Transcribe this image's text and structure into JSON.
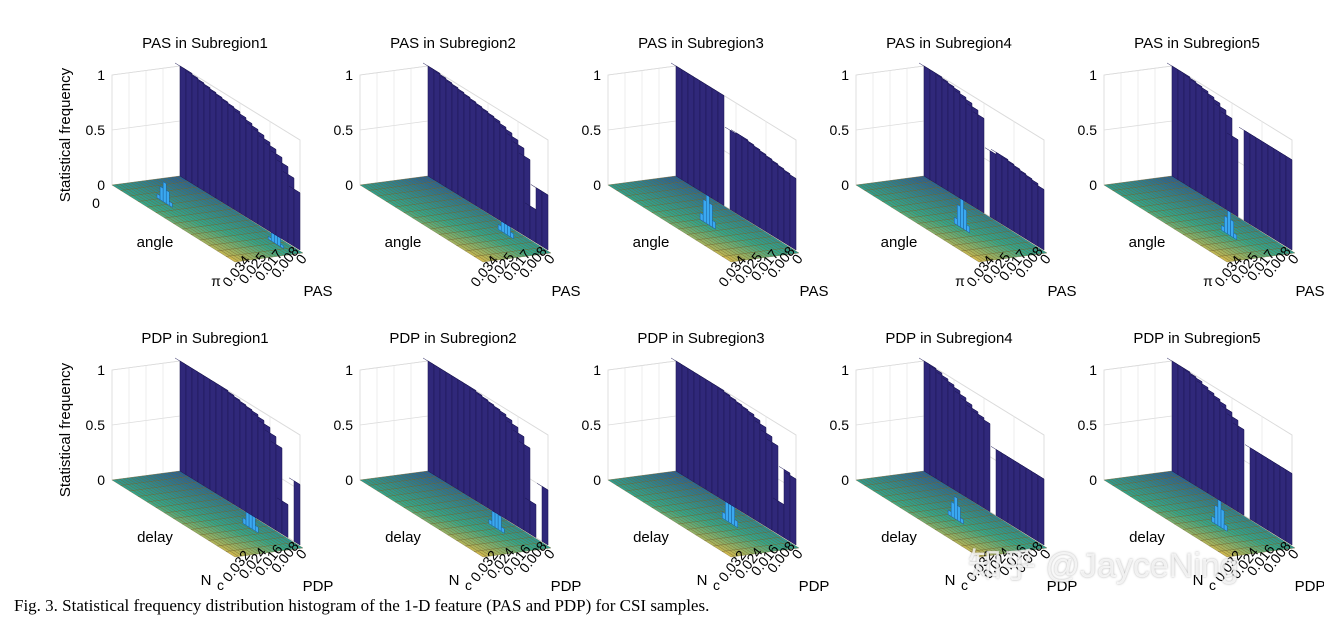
{
  "chart_data": [
    {
      "type": "bar3d",
      "title": "PAS in Subregion1",
      "ylabel": "Statistical frequency",
      "x_axis_label": "angle",
      "x_ticks": [
        "0",
        "π"
      ],
      "y_axis_label": "PAS",
      "y_ticks": [
        "0",
        "0.008",
        "0.017",
        "0.025",
        "0.034"
      ],
      "z_ticks": [
        "0",
        "0.5",
        "1"
      ],
      "zlim": [
        0,
        1
      ],
      "back_wall_profile": [
        1.0,
        1.0,
        0.99,
        0.98,
        0.97,
        0.96,
        0.95,
        0.94,
        0.93,
        0.92,
        0.9,
        0.88,
        0.86,
        0.84,
        0.81,
        0.78,
        0.74,
        0.69,
        0.62,
        0.52
      ],
      "peaks": [
        {
          "angle_pos": 0.25,
          "pas_pos": 0.3,
          "height": 0.18
        },
        {
          "angle_pos": 0.85,
          "pas_pos": 0.85,
          "height": 0.12
        }
      ]
    },
    {
      "type": "bar3d",
      "title": "PAS in Subregion2",
      "ylabel": "",
      "x_axis_label": "angle",
      "x_ticks": [],
      "y_axis_label": "PAS",
      "y_ticks": [
        "0",
        "0.008",
        "0.017",
        "0.025",
        "0.034"
      ],
      "z_ticks": [
        "0",
        "0.5",
        "1"
      ],
      "zlim": [
        0,
        1
      ],
      "back_wall_profile": [
        1.0,
        1.0,
        0.99,
        0.98,
        0.97,
        0.96,
        0.95,
        0.94,
        0.93,
        0.92,
        0.91,
        0.9,
        0.88,
        0.86,
        0.83,
        0.79,
        0.72,
        0.3,
        0.5,
        0.5
      ],
      "peaks": [
        {
          "angle_pos": 0.72,
          "pas_pos": 0.82,
          "height": 0.22
        }
      ]
    },
    {
      "type": "bar3d",
      "title": "PAS in Subregion3",
      "ylabel": "",
      "x_axis_label": "angle",
      "x_ticks": [],
      "y_axis_label": "PAS",
      "y_ticks": [
        "0",
        "0.008",
        "0.017",
        "0.025",
        "0.034"
      ],
      "z_ticks": [
        "0",
        "0.5",
        "1"
      ],
      "zlim": [
        0,
        1
      ],
      "back_wall_profile": [
        1.0,
        1.0,
        1.0,
        1.0,
        1.0,
        1.0,
        1.0,
        1.0,
        0.0,
        0.72,
        0.73,
        0.73,
        0.72,
        0.71,
        0.7,
        0.69,
        0.68,
        0.67,
        0.66,
        0.65
      ],
      "peaks": [
        {
          "angle_pos": 0.55,
          "pas_pos": 0.45,
          "height": 0.3
        }
      ]
    },
    {
      "type": "bar3d",
      "title": "PAS in Subregion4",
      "ylabel": "",
      "x_axis_label": "angle",
      "x_ticks": [
        "π"
      ],
      "y_axis_label": "PAS",
      "y_ticks": [
        "0",
        "0.008",
        "0.017",
        "0.025",
        "0.034"
      ],
      "z_ticks": [
        "0",
        "0.5",
        "1"
      ],
      "zlim": [
        0,
        1
      ],
      "back_wall_profile": [
        1.0,
        1.0,
        1.0,
        0.99,
        0.98,
        0.97,
        0.95,
        0.93,
        0.9,
        0.86,
        0.0,
        0.6,
        0.62,
        0.62,
        0.61,
        0.6,
        0.59,
        0.58,
        0.57,
        0.55
      ],
      "peaks": [
        {
          "angle_pos": 0.6,
          "pas_pos": 0.45,
          "height": 0.28
        }
      ]
    },
    {
      "type": "bar3d",
      "title": "PAS in Subregion5",
      "ylabel": "",
      "x_axis_label": "angle",
      "x_ticks": [
        "π"
      ],
      "y_axis_label": "PAS",
      "y_ticks": [
        "0",
        "0.008",
        "0.017",
        "0.025",
        "0.034"
      ],
      "z_ticks": [
        "0",
        "0.5",
        "1"
      ],
      "zlim": [
        0,
        1
      ],
      "back_wall_profile": [
        1.0,
        1.0,
        1.0,
        0.99,
        0.98,
        0.97,
        0.95,
        0.93,
        0.9,
        0.86,
        0.7,
        0.0,
        0.82,
        0.82,
        0.82,
        0.82,
        0.82,
        0.82,
        0.82,
        0.82
      ],
      "peaks": [
        {
          "angle_pos": 0.7,
          "pas_pos": 0.55,
          "height": 0.22
        }
      ]
    },
    {
      "type": "bar3d",
      "title": "PDP in Subregion1",
      "ylabel": "Statistical frequency",
      "x_axis_label": "delay",
      "x_ticks": [],
      "y_axis_label": "PDP",
      "y_ticks": [
        "0",
        "0.008",
        "0.016",
        "0.024",
        "0.032"
      ],
      "z_ticks": [
        "0",
        "0.5",
        "1"
      ],
      "zlim": [
        0,
        1
      ],
      "back_wall_profile": [
        1.0,
        1.0,
        1.0,
        1.0,
        1.0,
        1.0,
        1.0,
        1.0,
        0.99,
        0.98,
        0.97,
        0.96,
        0.95,
        0.93,
        0.9,
        0.85,
        0.78,
        0.3,
        0.0,
        0.55
      ],
      "peaks": [
        {
          "angle_pos": 0.7,
          "pas_pos": 0.75,
          "height": 0.25
        }
      ]
    },
    {
      "type": "bar3d",
      "title": "PDP in Subregion2",
      "ylabel": "",
      "x_axis_label": "delay",
      "x_ticks": [],
      "y_axis_label": "PDP",
      "y_ticks": [
        "0",
        "0.008",
        "0.016",
        "0.024",
        "0.032"
      ],
      "z_ticks": [
        "0",
        "0.5",
        "1"
      ],
      "zlim": [
        0,
        1
      ],
      "back_wall_profile": [
        1.0,
        1.0,
        1.0,
        1.0,
        1.0,
        1.0,
        1.0,
        1.0,
        0.99,
        0.98,
        0.97,
        0.96,
        0.95,
        0.93,
        0.9,
        0.85,
        0.78,
        0.3,
        0.0,
        0.5
      ],
      "peaks": [
        {
          "angle_pos": 0.7,
          "pas_pos": 0.72,
          "height": 0.2
        }
      ]
    },
    {
      "type": "bar3d",
      "title": "PDP in Subregion3",
      "ylabel": "",
      "x_axis_label": "delay",
      "x_ticks": [],
      "y_axis_label": "PDP",
      "y_ticks": [
        "0",
        "0.008",
        "0.016",
        "0.024",
        "0.032"
      ],
      "z_ticks": [
        "0",
        "0.5",
        "1"
      ],
      "zlim": [
        0,
        1
      ],
      "back_wall_profile": [
        1.0,
        1.0,
        1.0,
        1.0,
        1.0,
        1.0,
        1.0,
        1.0,
        0.99,
        0.98,
        0.97,
        0.96,
        0.95,
        0.93,
        0.9,
        0.85,
        0.8,
        0.3,
        0.62,
        0.6
      ],
      "peaks": [
        {
          "angle_pos": 0.62,
          "pas_pos": 0.65,
          "height": 0.28
        }
      ]
    },
    {
      "type": "bar3d",
      "title": "PDP in Subregion4",
      "ylabel": "",
      "x_axis_label": "delay",
      "x_ticks": [],
      "y_axis_label": "PDP",
      "y_ticks": [
        "0",
        "0.008",
        "0.016",
        "0.024",
        "0.032"
      ],
      "z_ticks": [
        "0",
        "0.5",
        "1"
      ],
      "zlim": [
        0,
        1
      ],
      "back_wall_profile": [
        1.0,
        1.0,
        0.99,
        0.97,
        0.95,
        0.93,
        0.9,
        0.87,
        0.84,
        0.82,
        0.8,
        0.0,
        0.6,
        0.6,
        0.6,
        0.6,
        0.6,
        0.6,
        0.6,
        0.6
      ],
      "peaks": [
        {
          "angle_pos": 0.55,
          "pas_pos": 0.45,
          "height": 0.2
        }
      ]
    },
    {
      "type": "bar3d",
      "title": "PDP in Subregion5",
      "ylabel": "",
      "x_axis_label": "delay",
      "x_ticks": [],
      "y_axis_label": "PDP",
      "y_ticks": [
        "0",
        "0.008",
        "0.016",
        "0.024",
        "0.032"
      ],
      "z_ticks": [
        "0",
        "0.5",
        "1"
      ],
      "zlim": [
        0,
        1
      ],
      "back_wall_profile": [
        1.0,
        1.0,
        1.0,
        0.99,
        0.98,
        0.96,
        0.94,
        0.92,
        0.9,
        0.87,
        0.83,
        0.78,
        0.0,
        0.65,
        0.65,
        0.65,
        0.65,
        0.65,
        0.65,
        0.65
      ],
      "peaks": [
        {
          "angle_pos": 0.65,
          "pas_pos": 0.5,
          "height": 0.25
        }
      ]
    }
  ],
  "labels": {
    "x_tick_nc": "N",
    "x_tick_nc_sub": "c"
  },
  "caption": "Fig. 3.  Statistical frequency distribution histogram of the 1-D feature (PAS and PDP) for CSI samples.",
  "watermark": "知乎 @JayceNing",
  "colors": {
    "wall": "#30287a",
    "wall_top": "#4a44b0",
    "wall_edge": "#1a1450",
    "floor_front": "#d9b84a",
    "floor_mid": "#34a58a",
    "floor_back": "#2c5d8f",
    "peak": "#3aa8f0"
  }
}
